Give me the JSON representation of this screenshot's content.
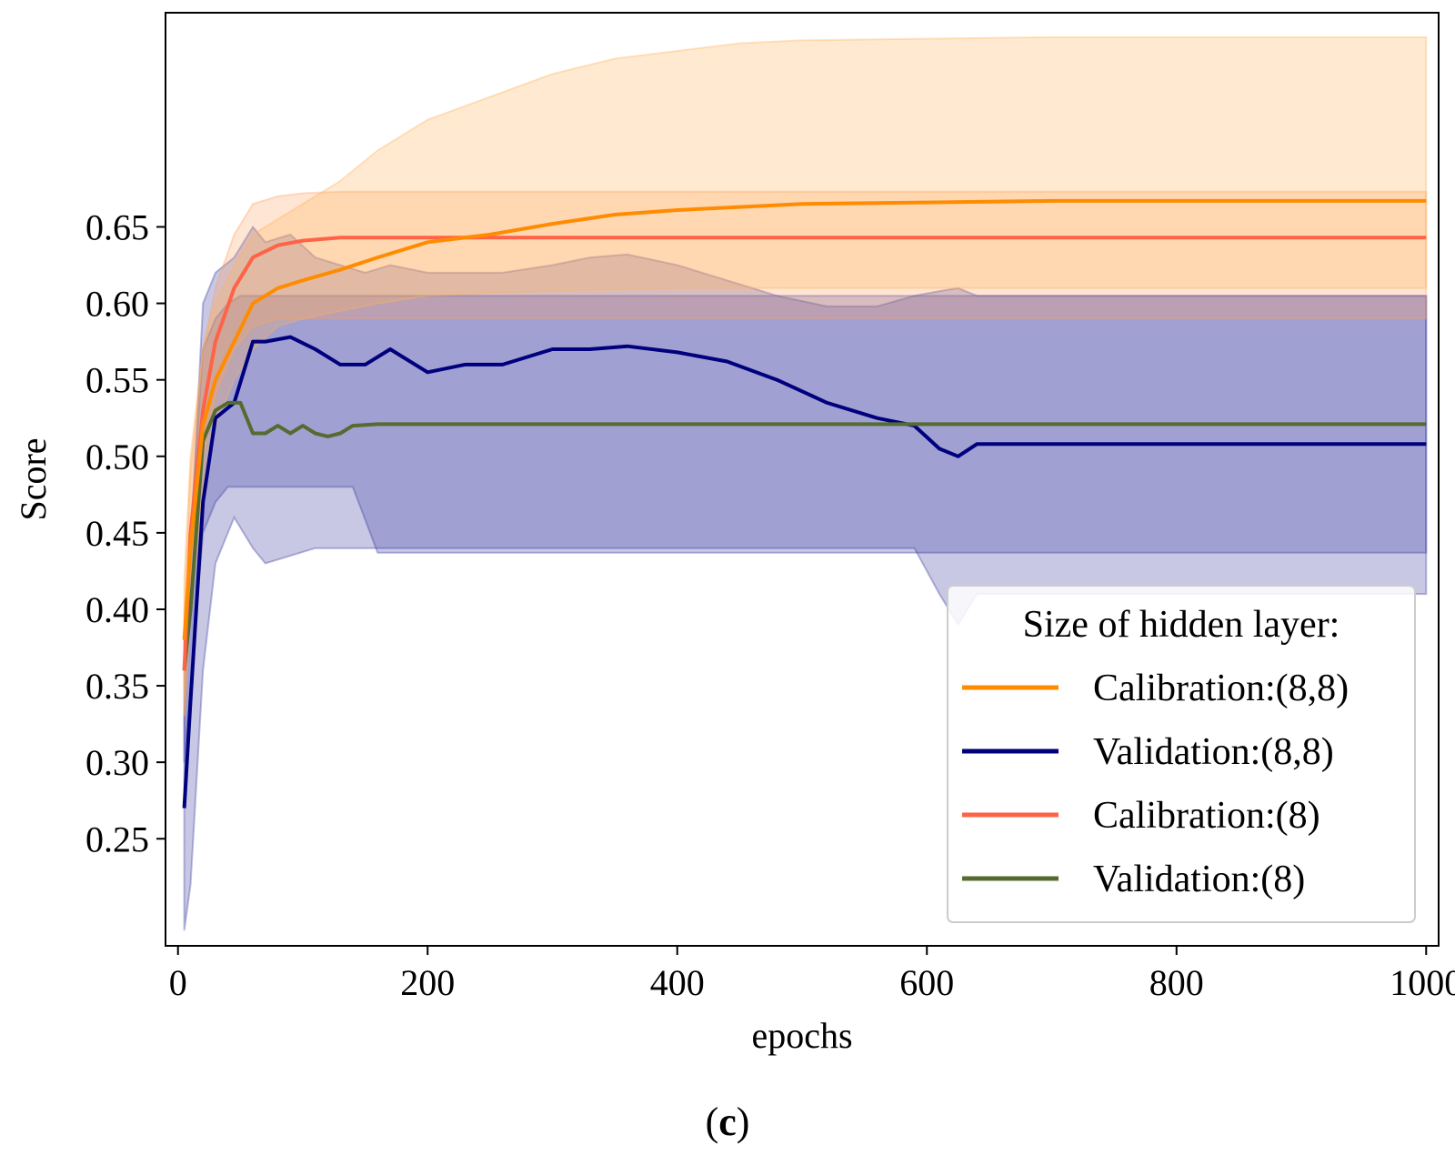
{
  "caption": {
    "open": "(",
    "letter": "c",
    "close": ")"
  },
  "chart_data": {
    "type": "line",
    "title": "",
    "xlabel": "epochs",
    "ylabel": "Score",
    "xlim": [
      -10,
      1010
    ],
    "ylim": [
      0.18,
      0.79
    ],
    "xticks": [
      0,
      200,
      400,
      600,
      800,
      1000
    ],
    "yticks": [
      0.25,
      0.3,
      0.35,
      0.4,
      0.45,
      0.5,
      0.55,
      0.6,
      0.65
    ],
    "xtick_labels": [
      "0",
      "200",
      "400",
      "600",
      "800",
      "1000"
    ],
    "ytick_labels": [
      "0.25",
      "0.30",
      "0.35",
      "0.40",
      "0.45",
      "0.50",
      "0.55",
      "0.60",
      "0.65"
    ],
    "grid": false,
    "legend": {
      "title": "Size of hidden layer:",
      "position": "lower-right"
    },
    "series": [
      {
        "name": "Calibration:(8,8)",
        "color": "#ff8c00",
        "band_color": "#ffb25a",
        "x": [
          5,
          10,
          20,
          30,
          45,
          60,
          80,
          100,
          130,
          160,
          200,
          250,
          300,
          350,
          400,
          450,
          500,
          600,
          700,
          800,
          1000
        ],
        "y": [
          0.38,
          0.44,
          0.52,
          0.55,
          0.575,
          0.6,
          0.61,
          0.615,
          0.622,
          0.63,
          0.64,
          0.645,
          0.652,
          0.658,
          0.661,
          0.663,
          0.665,
          0.666,
          0.667,
          0.667,
          0.667
        ],
        "lower": [
          0.33,
          0.4,
          0.48,
          0.52,
          0.55,
          0.57,
          0.585,
          0.59,
          0.595,
          0.6,
          0.605,
          0.607,
          0.608,
          0.609,
          0.61,
          0.61,
          0.61,
          0.61,
          0.61,
          0.61,
          0.61
        ],
        "upper": [
          0.42,
          0.5,
          0.57,
          0.6,
          0.625,
          0.645,
          0.655,
          0.665,
          0.68,
          0.7,
          0.72,
          0.735,
          0.75,
          0.76,
          0.765,
          0.77,
          0.772,
          0.773,
          0.774,
          0.774,
          0.774
        ]
      },
      {
        "name": "Validation:(8,8)",
        "color": "#00007f",
        "band_color": "#3b3ba0",
        "x": [
          5,
          10,
          20,
          30,
          45,
          60,
          70,
          90,
          110,
          130,
          150,
          170,
          200,
          230,
          260,
          300,
          330,
          360,
          400,
          440,
          480,
          520,
          560,
          590,
          610,
          625,
          640,
          660,
          700,
          800,
          1000
        ],
        "y": [
          0.27,
          0.34,
          0.47,
          0.525,
          0.535,
          0.575,
          0.575,
          0.578,
          0.57,
          0.56,
          0.56,
          0.57,
          0.555,
          0.56,
          0.56,
          0.57,
          0.57,
          0.572,
          0.568,
          0.562,
          0.55,
          0.535,
          0.525,
          0.52,
          0.505,
          0.5,
          0.508,
          0.508,
          0.508,
          0.508,
          0.508
        ],
        "lower": [
          0.19,
          0.22,
          0.36,
          0.43,
          0.46,
          0.44,
          0.43,
          0.435,
          0.44,
          0.44,
          0.44,
          0.44,
          0.44,
          0.44,
          0.44,
          0.44,
          0.44,
          0.44,
          0.44,
          0.44,
          0.44,
          0.44,
          0.44,
          0.44,
          0.41,
          0.39,
          0.41,
          0.41,
          0.41,
          0.41,
          0.41
        ],
        "upper": [
          0.33,
          0.44,
          0.6,
          0.62,
          0.63,
          0.65,
          0.64,
          0.645,
          0.63,
          0.625,
          0.62,
          0.625,
          0.62,
          0.62,
          0.62,
          0.625,
          0.63,
          0.632,
          0.625,
          0.615,
          0.605,
          0.598,
          0.598,
          0.605,
          0.608,
          0.61,
          0.605,
          0.605,
          0.605,
          0.605,
          0.605
        ]
      },
      {
        "name": "Calibration:(8)",
        "color": "#ff6347",
        "band_color": "#ffa060",
        "x": [
          5,
          10,
          20,
          30,
          45,
          60,
          80,
          100,
          130,
          160,
          200,
          300,
          500,
          700,
          1000
        ],
        "y": [
          0.36,
          0.45,
          0.53,
          0.575,
          0.61,
          0.63,
          0.638,
          0.641,
          0.643,
          0.643,
          0.643,
          0.643,
          0.643,
          0.643,
          0.643
        ],
        "lower": [
          0.33,
          0.41,
          0.5,
          0.54,
          0.57,
          0.585,
          0.59,
          0.59,
          0.59,
          0.59,
          0.59,
          0.59,
          0.59,
          0.59,
          0.59
        ],
        "upper": [
          0.4,
          0.49,
          0.57,
          0.61,
          0.645,
          0.665,
          0.67,
          0.672,
          0.673,
          0.673,
          0.673,
          0.673,
          0.673,
          0.673,
          0.673
        ]
      },
      {
        "name": "Validation:(8)",
        "color": "#556b2f",
        "band_color": "#3b3ba0",
        "x": [
          5,
          10,
          20,
          30,
          40,
          50,
          60,
          70,
          80,
          90,
          100,
          110,
          120,
          130,
          140,
          160,
          200,
          400,
          600,
          800,
          1000
        ],
        "y": [
          0.36,
          0.4,
          0.51,
          0.53,
          0.535,
          0.535,
          0.515,
          0.515,
          0.52,
          0.515,
          0.52,
          0.515,
          0.513,
          0.515,
          0.52,
          0.521,
          0.521,
          0.521,
          0.521,
          0.521,
          0.521
        ],
        "lower": [
          0.3,
          0.35,
          0.45,
          0.47,
          0.48,
          0.48,
          0.48,
          0.48,
          0.48,
          0.48,
          0.48,
          0.48,
          0.48,
          0.48,
          0.48,
          0.437,
          0.437,
          0.437,
          0.437,
          0.437,
          0.437
        ],
        "upper": [
          0.38,
          0.45,
          0.57,
          0.59,
          0.6,
          0.605,
          0.605,
          0.605,
          0.605,
          0.605,
          0.605,
          0.605,
          0.605,
          0.605,
          0.605,
          0.605,
          0.605,
          0.605,
          0.605,
          0.605,
          0.605
        ]
      }
    ]
  }
}
